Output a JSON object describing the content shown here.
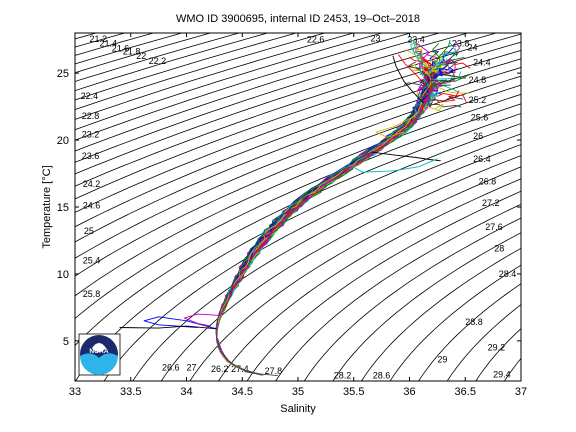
{
  "chart_data": {
    "type": "line",
    "title": "WMO ID 3900695, internal ID 2453, 19–Oct–2018",
    "xlabel": "Salinity",
    "ylabel": "Temperature [°C]",
    "xlim": [
      33,
      37
    ],
    "ylim": [
      2,
      28
    ],
    "xticks": [
      "33",
      "33.5",
      "34",
      "34.5",
      "35",
      "35.5",
      "36",
      "36.5",
      "37"
    ],
    "yticks": [
      "5",
      "10",
      "15",
      "20",
      "25"
    ],
    "grid": false,
    "legend": "none",
    "isopycnal_labels": [
      {
        "text": "21.2",
        "s": 33.13,
        "t": 27.55
      },
      {
        "text": "21.4",
        "s": 33.22,
        "t": 27.2
      },
      {
        "text": "21.6",
        "s": 33.33,
        "t": 26.85
      },
      {
        "text": "21.8",
        "s": 33.43,
        "t": 26.6
      },
      {
        "text": "22",
        "s": 33.55,
        "t": 26.3
      },
      {
        "text": "22.2",
        "s": 33.66,
        "t": 25.9
      },
      {
        "text": "22.4",
        "s": 33.05,
        "t": 23.3
      },
      {
        "text": "22.6",
        "s": 35.08,
        "t": 27.5
      },
      {
        "text": "22.8",
        "s": 33.06,
        "t": 21.8
      },
      {
        "text": "23",
        "s": 35.65,
        "t": 27.6
      },
      {
        "text": "23.2",
        "s": 33.06,
        "t": 20.4
      },
      {
        "text": "23.4",
        "s": 35.98,
        "t": 27.5
      },
      {
        "text": "23.6",
        "s": 33.06,
        "t": 18.8
      },
      {
        "text": "23.8",
        "s": 36.38,
        "t": 27.2
      },
      {
        "text": "24",
        "s": 36.52,
        "t": 26.9
      },
      {
        "text": "24.2",
        "s": 33.07,
        "t": 16.7
      },
      {
        "text": "24.4",
        "s": 36.57,
        "t": 25.8
      },
      {
        "text": "24.6",
        "s": 33.07,
        "t": 15.1
      },
      {
        "text": "24.8",
        "s": 36.53,
        "t": 24.5
      },
      {
        "text": "25",
        "s": 33.08,
        "t": 13.2
      },
      {
        "text": "25.2",
        "s": 36.53,
        "t": 23.0
      },
      {
        "text": "25.4",
        "s": 33.07,
        "t": 11.0
      },
      {
        "text": "25.6",
        "s": 36.55,
        "t": 21.7
      },
      {
        "text": "25.8",
        "s": 33.07,
        "t": 8.5
      },
      {
        "text": "26",
        "s": 36.57,
        "t": 20.3
      },
      {
        "text": "26.2",
        "s": 34.22,
        "t": 2.9
      },
      {
        "text": "26.4",
        "s": 36.57,
        "t": 18.6
      },
      {
        "text": "26.6",
        "s": 33.78,
        "t": 3.0
      },
      {
        "text": "26.8",
        "s": 36.62,
        "t": 16.9
      },
      {
        "text": "27",
        "s": 34.0,
        "t": 3.0
      },
      {
        "text": "27.2",
        "s": 36.65,
        "t": 15.3
      },
      {
        "text": "27.4",
        "s": 34.4,
        "t": 2.9
      },
      {
        "text": "27.6",
        "s": 36.68,
        "t": 13.5
      },
      {
        "text": "27.8",
        "s": 34.7,
        "t": 2.75
      },
      {
        "text": "28",
        "s": 36.76,
        "t": 11.9
      },
      {
        "text": "28.2",
        "s": 35.32,
        "t": 2.4
      },
      {
        "text": "28.4",
        "s": 36.8,
        "t": 10.0
      },
      {
        "text": "28.6",
        "s": 35.67,
        "t": 2.4
      },
      {
        "text": "28.8",
        "s": 36.5,
        "t": 6.4
      },
      {
        "text": "29",
        "s": 36.25,
        "t": 3.6
      },
      {
        "text": "29.2",
        "s": 36.7,
        "t": 4.5
      },
      {
        "text": "29.4",
        "s": 36.75,
        "t": 2.5
      }
    ],
    "main_path": [
      [
        34.68,
        2.45
      ],
      [
        34.6,
        2.6
      ],
      [
        34.48,
        2.9
      ],
      [
        34.38,
        3.4
      ],
      [
        34.32,
        4.0
      ],
      [
        34.29,
        4.6
      ],
      [
        34.27,
        5.3
      ],
      [
        34.27,
        5.9
      ],
      [
        34.28,
        6.3
      ],
      [
        34.3,
        6.9
      ],
      [
        34.34,
        7.7
      ],
      [
        34.38,
        8.4
      ],
      [
        34.44,
        9.3
      ],
      [
        34.52,
        10.5
      ],
      [
        34.62,
        11.8
      ],
      [
        34.75,
        13.2
      ],
      [
        34.9,
        14.5
      ],
      [
        35.08,
        15.8
      ],
      [
        35.28,
        17.0
      ],
      [
        35.48,
        18.1
      ],
      [
        35.66,
        19.1
      ],
      [
        35.82,
        20.0
      ],
      [
        35.95,
        20.9
      ],
      [
        36.05,
        21.8
      ],
      [
        36.12,
        22.8
      ],
      [
        36.17,
        23.8
      ],
      [
        36.2,
        24.8
      ],
      [
        36.2,
        25.6
      ]
    ],
    "branches": [
      [
        [
          34.27,
          5.9
        ],
        [
          34.0,
          6.5
        ],
        [
          33.75,
          6.8
        ],
        [
          33.62,
          6.5
        ],
        [
          33.75,
          6.2
        ],
        [
          34.1,
          6.0
        ]
      ],
      [
        [
          34.27,
          5.9
        ],
        [
          34.0,
          6.1
        ],
        [
          33.75,
          5.95
        ],
        [
          33.4,
          6.0
        ]
      ],
      [
        [
          34.3,
          6.9
        ],
        [
          34.1,
          7.0
        ],
        [
          33.98,
          6.7
        ],
        [
          34.1,
          6.3
        ],
        [
          34.22,
          6.1
        ]
      ],
      [
        [
          34.52,
          2.7
        ],
        [
          34.62,
          2.55
        ],
        [
          34.82,
          2.4
        ]
      ],
      [
        [
          35.66,
          19.1
        ],
        [
          35.85,
          18.9
        ],
        [
          36.06,
          18.7
        ],
        [
          36.18,
          18.55
        ],
        [
          36.28,
          18.45
        ]
      ],
      [
        [
          35.45,
          18.2
        ],
        [
          35.58,
          17.6
        ],
        [
          35.85,
          17.7
        ],
        [
          36.08,
          18.0
        ],
        [
          36.25,
          18.6
        ]
      ],
      [
        [
          36.05,
          21.8
        ],
        [
          35.86,
          21.0
        ],
        [
          35.7,
          20.6
        ],
        [
          35.8,
          20.2
        ],
        [
          35.95,
          20.6
        ]
      ],
      [
        [
          36.12,
          22.8
        ],
        [
          36.03,
          23.6
        ],
        [
          35.95,
          24.4
        ],
        [
          35.88,
          25.5
        ],
        [
          35.85,
          26.3
        ]
      ],
      [
        [
          36.17,
          23.8
        ],
        [
          36.08,
          24.7
        ],
        [
          35.96,
          25.7
        ],
        [
          35.9,
          26.4
        ]
      ]
    ],
    "top_spread": {
      "smin": 35.95,
      "smax": 36.5,
      "tmin": 22.4,
      "tmax": 27.6
    }
  },
  "colors": {
    "palette": [
      "#0000ff",
      "#008000",
      "#ff0000",
      "#00bfbf",
      "#bf00bf",
      "#bfbf00",
      "#404040"
    ],
    "isopycnal": "#000000",
    "background": "#ffffff",
    "axes": "#000000",
    "logo_navy": "#1b2a6b",
    "logo_sky": "#2fb4e9"
  },
  "logo": {
    "text": "NOAA"
  }
}
